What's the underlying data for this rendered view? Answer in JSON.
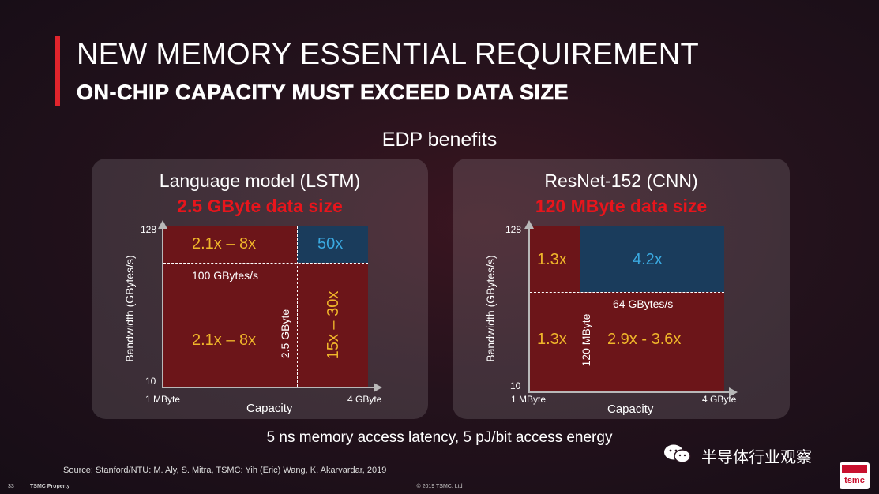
{
  "slide": {
    "title": "NEW MEMORY ESSENTIAL REQUIREMENT",
    "subtitle": "ON-CHIP CAPACITY MUST EXCEED DATA SIZE",
    "section_heading": "EDP benefits",
    "footer_main": "5 ns memory access latency, 5 pJ/bit access energy",
    "source": "Source: Stanford/NTU: M. Aly, S. Mitra, TSMC: Yih (Eric) Wang, K. Akarvardar, 2019",
    "page_number": "33",
    "property": "TSMC Property",
    "copyright": "© 2019 TSMC, Ltd",
    "watermark_text": "半导体行业观察",
    "logo_text": "tsmc",
    "accent_color": "#e0242c"
  },
  "panels": {
    "left": {
      "title": "Language model (LSTM)",
      "subtitle": "2.5 GByte data size",
      "y_axis_label": "Bandwidth (GBytes/s)",
      "x_axis_label": "Capacity",
      "y_top_tick": "128",
      "y_bottom_tick": "10",
      "x_left_tick": "1 MByte",
      "x_right_tick": "4 GByte",
      "top_left_gain": "2.1x – 8x",
      "top_right_gain": "50x",
      "bottom_left_gain": "2.1x – 8x",
      "bottom_right_gain": "15x – 30x",
      "bandwidth_threshold": "100 GBytes/s",
      "capacity_threshold": "2.5 GByte"
    },
    "right": {
      "title": "ResNet-152 (CNN)",
      "subtitle": "120 MByte data size",
      "y_axis_label": "Bandwidth (GBytes/s)",
      "x_axis_label": "Capacity",
      "y_top_tick": "128",
      "y_bottom_tick": "10",
      "x_left_tick": "1 MByte",
      "x_right_tick": "4 GByte",
      "top_left_gain": "1.3x",
      "top_right_gain": "4.2x",
      "bottom_left_gain": "1.3x",
      "bottom_right_gain": "2.9x  - 3.6x",
      "bandwidth_threshold": "64 GBytes/s",
      "capacity_threshold": "120 MByte"
    }
  },
  "colors": {
    "region_red": "#6c1519",
    "region_blue": "#1a3c5c",
    "gain_yellow": "#f0b62a",
    "gain_blue": "#3aa9e0",
    "subtitle_red": "#e8151c"
  }
}
